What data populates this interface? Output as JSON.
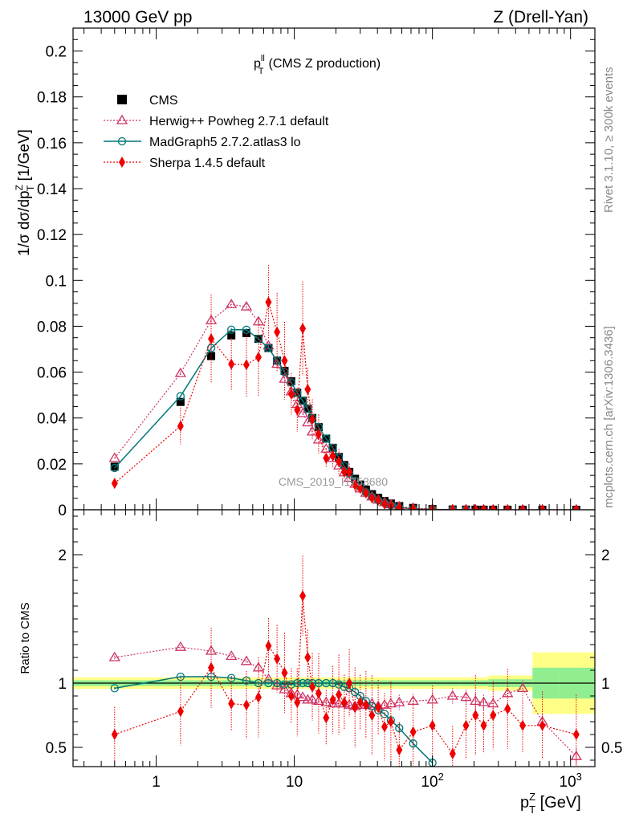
{
  "header": {
    "left": "13000 GeV pp",
    "right": "Z (Drell-Yan)"
  },
  "side_labels": {
    "rivet": "Rivet 3.1.10, ≥ 300k events",
    "mcplots": "mcplots.cern.ch [arXiv:1306.3436]"
  },
  "watermark": "CMS_2019_I1753680",
  "colors": {
    "cms": "#000000",
    "herwig": "#cc3366",
    "madgraph": "#007777",
    "sherpa": "#ee0000",
    "band_inner": "#90ee90",
    "band_outer": "#ffff88"
  },
  "chart_data": [
    {
      "type": "scatter",
      "panel": "main",
      "title": "p_T^ll (CMS Z production)",
      "title_var": "p",
      "title_sup": "ll",
      "title_sub": "T",
      "title_rest": "(CMS Z production)",
      "xlabel": "p_T^Z [GeV]",
      "ylabel": "1/σ dσ/dp_T^Z [1/GeV]",
      "xscale": "log",
      "xlim": [
        0.25,
        1500
      ],
      "ylim": [
        0,
        0.21
      ],
      "ytick_labels": [
        "0",
        "0.02",
        "0.04",
        "0.06",
        "0.08",
        "0.1",
        "0.12",
        "0.14",
        "0.16",
        "0.18",
        "0.2"
      ],
      "legend": [
        {
          "label": "CMS",
          "marker": "square"
        },
        {
          "label": "Herwig++ Powheg 2.7.1 default",
          "marker": "triangle"
        },
        {
          "label": "MadGraph5 2.7.2.atlas3 lo",
          "marker": "circle"
        },
        {
          "label": "Sherpa 1.4.5 default",
          "marker": "diamond"
        }
      ],
      "x": [
        0.5,
        1.5,
        2.5,
        3.5,
        4.5,
        5.5,
        6.5,
        7.5,
        8.5,
        9.5,
        10.5,
        11.5,
        12.5,
        13.5,
        15,
        17,
        19,
        21,
        23,
        25,
        27.5,
        30,
        33,
        36.5,
        40.5,
        45,
        50,
        57.5,
        72.5,
        100,
        140,
        175,
        205,
        235,
        275,
        350,
        450,
        625,
        1100
      ],
      "series": [
        {
          "name": "CMS",
          "values": [
            0.0188,
            0.047,
            0.067,
            0.076,
            0.077,
            0.0745,
            0.0705,
            0.065,
            0.0605,
            0.056,
            0.051,
            0.0475,
            0.044,
            0.04,
            0.036,
            0.031,
            0.027,
            0.023,
            0.0195,
            0.0165,
            0.0135,
            0.011,
            0.0088,
            0.0068,
            0.0052,
            0.0038,
            0.0027,
            0.0016,
            0.0008,
            0.0003,
            0.00012,
            6e-05,
            4e-05,
            3e-05,
            2e-05,
            1e-05,
            6e-06,
            3e-06,
            5e-07
          ]
        },
        {
          "name": "Herwig++ Powheg 2.7.1 default",
          "values": [
            0.0225,
            0.0595,
            0.0825,
            0.0895,
            0.0885,
            0.082,
            0.0715,
            0.0635,
            0.057,
            0.0515,
            0.046,
            0.042,
            0.038,
            0.034,
            0.0305,
            0.0265,
            0.0225,
            0.0192,
            0.0162,
            0.0138,
            0.0112,
            0.0092,
            0.0073,
            0.0057,
            0.0043,
            0.0032,
            0.0023,
            0.0014,
            0.0007,
            0.00025,
            0.0001,
            5e-05,
            3.5e-05,
            2.6e-05,
            1.7e-05,
            8.5e-06,
            5.5e-06,
            2.1e-06,
            2e-07
          ]
        },
        {
          "name": "MadGraph5 2.7.2.atlas3 lo",
          "values": [
            0.0182,
            0.0495,
            0.0705,
            0.0785,
            0.0785,
            0.0745,
            0.0705,
            0.065,
            0.06,
            0.0555,
            0.051,
            0.0475,
            0.044,
            0.04,
            0.036,
            0.031,
            0.027,
            0.0228,
            0.019,
            0.0158,
            0.0126,
            0.0099,
            0.0076,
            0.0056,
            0.0041,
            0.0029,
            0.0019,
            0.001,
            0.0004,
            0.000115,
            3e-05,
            1e-05
          ]
        },
        {
          "name": "Sherpa 1.4.5 default",
          "values": [
            0.0115,
            0.0365,
            0.0745,
            0.0635,
            0.0632,
            0.0665,
            0.0905,
            0.0775,
            0.065,
            0.0505,
            0.0435,
            0.079,
            0.0525,
            0.0395,
            0.033,
            0.0225,
            0.0235,
            0.021,
            0.0165,
            0.0165,
            0.0109,
            0.0093,
            0.0073,
            0.0051,
            0.0042,
            0.0025,
            0.0019,
            0.0008,
            0.0005,
            0.0002,
            5.5e-05,
            4e-05,
            3e-05,
            2e-05,
            1.5e-05,
            8e-06,
            4e-06,
            2e-06,
            3e-07
          ]
        }
      ]
    },
    {
      "type": "scatter",
      "panel": "ratio",
      "ylabel": "Ratio to CMS",
      "xscale": "log",
      "xlim": [
        0.25,
        1500
      ],
      "ylim": [
        0.35,
        2.35
      ],
      "ytick_labels": [
        "0.5",
        "1",
        "2"
      ],
      "xtick_labels": [
        "1",
        "10",
        "10^2",
        "10^3"
      ],
      "x": [
        0.5,
        1.5,
        2.5,
        3.5,
        4.5,
        5.5,
        6.5,
        7.5,
        8.5,
        9.5,
        10.5,
        11.5,
        12.5,
        13.5,
        15,
        17,
        19,
        21,
        23,
        25,
        27.5,
        30,
        33,
        36.5,
        40.5,
        45,
        50,
        57.5,
        72.5,
        100,
        140,
        175,
        205,
        235,
        275,
        350,
        450,
        625,
        1100
      ],
      "series": [
        {
          "name": "Herwig++ Powheg 2.7.1 default",
          "values": [
            1.2,
            1.28,
            1.25,
            1.21,
            1.17,
            1.12,
            1.03,
            0.98,
            0.95,
            0.92,
            0.91,
            0.89,
            0.87,
            0.87,
            0.86,
            0.85,
            0.84,
            0.84,
            0.84,
            0.83,
            0.82,
            0.83,
            0.83,
            0.84,
            0.82,
            0.83,
            0.84,
            0.85,
            0.86,
            0.87,
            0.9,
            0.89,
            0.86,
            0.85,
            0.84,
            0.92,
            0.96,
            0.7,
            0.43
          ]
        },
        {
          "name": "MadGraph5 2.7.2.atlas3 lo",
          "values": [
            0.96,
            1.05,
            1.05,
            1.04,
            1.02,
            1.0,
            1.0,
            1.0,
            0.99,
            0.99,
            1.0,
            1.0,
            1.0,
            1.0,
            1.0,
            1.0,
            1.0,
            0.99,
            0.97,
            0.96,
            0.93,
            0.9,
            0.86,
            0.82,
            0.79,
            0.76,
            0.71,
            0.65,
            0.53,
            0.38
          ]
        },
        {
          "name": "Sherpa 1.4.5 default",
          "values": [
            0.6,
            0.78,
            1.12,
            0.84,
            0.83,
            0.89,
            1.29,
            1.19,
            1.08,
            0.9,
            0.85,
            1.68,
            1.2,
            0.97,
            0.92,
            0.73,
            0.87,
            0.91,
            0.85,
            1.0,
            0.81,
            0.85,
            0.83,
            0.75,
            0.81,
            0.66,
            0.7,
            0.48,
            0.62,
            0.67,
            0.45,
            0.67,
            0.75,
            0.67,
            0.75,
            0.8,
            0.67,
            0.67,
            0.6
          ]
        }
      ]
    }
  ]
}
